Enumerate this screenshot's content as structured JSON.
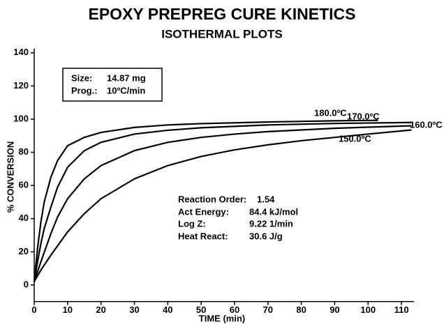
{
  "chart_data": {
    "type": "line",
    "title": "EPOXY PREPREG CURE KINETICS",
    "subtitle": "ISOTHERMAL PLOTS",
    "xlabel": "TIME (min)",
    "ylabel": "% CONVERSION",
    "xlim": [
      0,
      115
    ],
    "ylim": [
      -10,
      140
    ],
    "xticks": [
      0,
      10,
      20,
      30,
      40,
      50,
      60,
      70,
      80,
      90,
      100,
      110
    ],
    "yticks": [
      0,
      20,
      40,
      60,
      80,
      100,
      120,
      140
    ],
    "series": [
      {
        "name": "180.0ºC",
        "color": "#000000",
        "x": [
          0,
          1,
          2,
          3,
          5,
          7,
          10,
          15,
          20,
          30,
          40,
          50,
          70,
          90,
          103
        ],
        "values": [
          2,
          22,
          38,
          50,
          65,
          75,
          84,
          89,
          92,
          95,
          96.5,
          97.3,
          98.3,
          99,
          99.3
        ]
      },
      {
        "name": "170.0ºC",
        "color": "#000000",
        "x": [
          0,
          1,
          2,
          3,
          5,
          7,
          10,
          15,
          20,
          30,
          40,
          50,
          70,
          90,
          113
        ],
        "values": [
          2,
          14,
          25,
          34,
          47,
          59,
          71,
          81,
          86,
          91,
          93.3,
          94.8,
          96.5,
          97.4,
          98
        ]
      },
      {
        "name": "160.0ºC",
        "color": "#000000",
        "x": [
          0,
          2,
          5,
          7,
          10,
          15,
          20,
          30,
          40,
          50,
          60,
          70,
          90,
          113
        ],
        "values": [
          2,
          14,
          31,
          41,
          52,
          64,
          72,
          81,
          86,
          89,
          91,
          92.5,
          94.5,
          96
        ]
      },
      {
        "name": "150.0ºC",
        "color": "#000000",
        "x": [
          0,
          2,
          5,
          10,
          15,
          20,
          30,
          40,
          50,
          60,
          70,
          80,
          90,
          100,
          113
        ],
        "values": [
          2,
          9,
          18,
          32,
          43,
          52,
          64,
          72,
          77.5,
          81.5,
          84.5,
          87,
          89,
          91,
          93.5
        ]
      }
    ],
    "annotations": {
      "sample": [
        [
          "Size:",
          "14.87 mg"
        ],
        [
          "Prog.:",
          "10ºC/min"
        ]
      ],
      "kinetics": [
        [
          "Reaction Order:",
          "1.54"
        ],
        [
          "Act Energy:",
          "84.4 kJ/mol"
        ],
        [
          "Log Z:",
          "9.22 1/min"
        ],
        [
          "Heat React:",
          "30.6 J/g"
        ]
      ]
    }
  }
}
